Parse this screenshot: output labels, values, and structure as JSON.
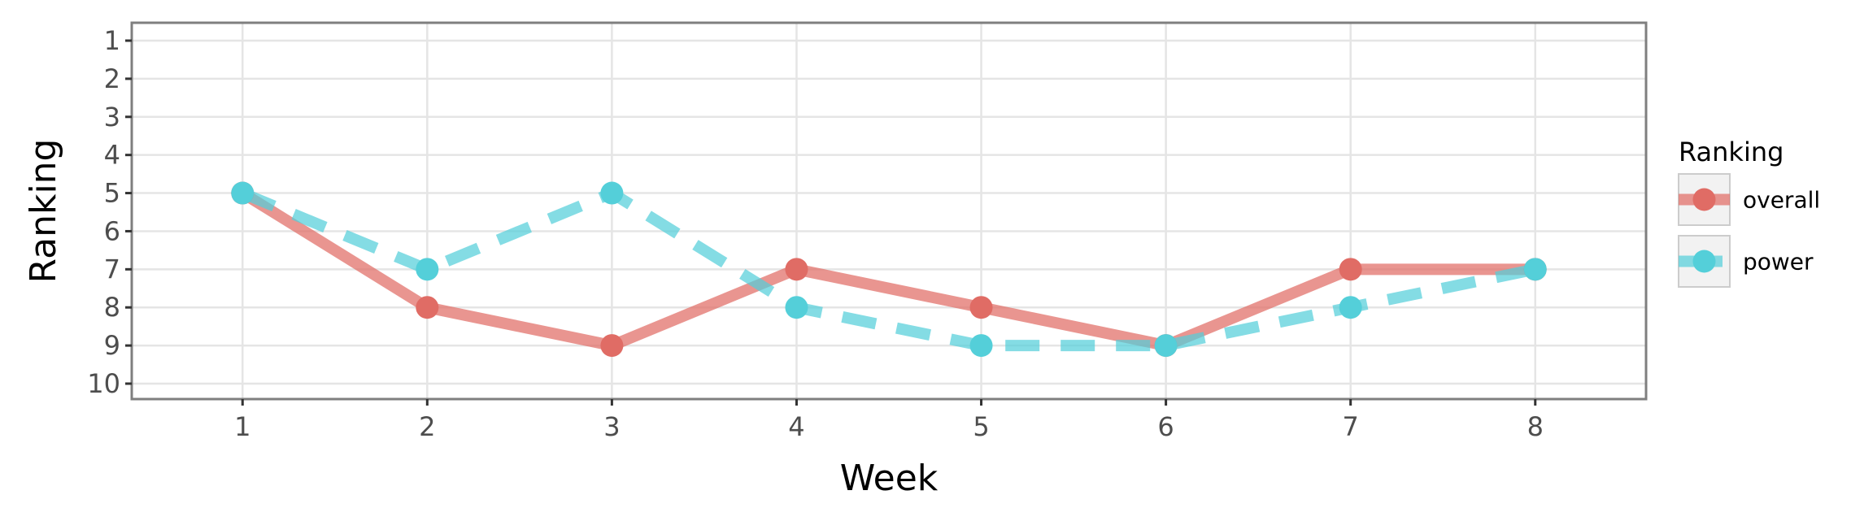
{
  "chart_data": {
    "type": "line",
    "title": "",
    "xlabel": "Week",
    "ylabel": "Ranking",
    "x": [
      1,
      2,
      3,
      4,
      5,
      6,
      7,
      8
    ],
    "x_ticks": [
      "1",
      "2",
      "3",
      "4",
      "5",
      "6",
      "7",
      "8"
    ],
    "y_ticks": [
      "1",
      "2",
      "3",
      "4",
      "5",
      "6",
      "7",
      "8",
      "9",
      "10"
    ],
    "xlim": [
      0.4,
      8.6
    ],
    "ylim": [
      1,
      10
    ],
    "y_reversed": true,
    "grid": true,
    "legend_title": "Ranking",
    "legend_position": "right",
    "series": [
      {
        "name": "overall",
        "values": [
          5,
          8,
          9,
          7,
          8,
          9,
          7,
          7
        ],
        "color": "#e06c65",
        "line_style": "solid"
      },
      {
        "name": "power",
        "values": [
          5,
          7,
          5,
          8,
          9,
          9,
          8,
          7
        ],
        "color": "#54cfd9",
        "line_style": "dashed"
      }
    ]
  }
}
